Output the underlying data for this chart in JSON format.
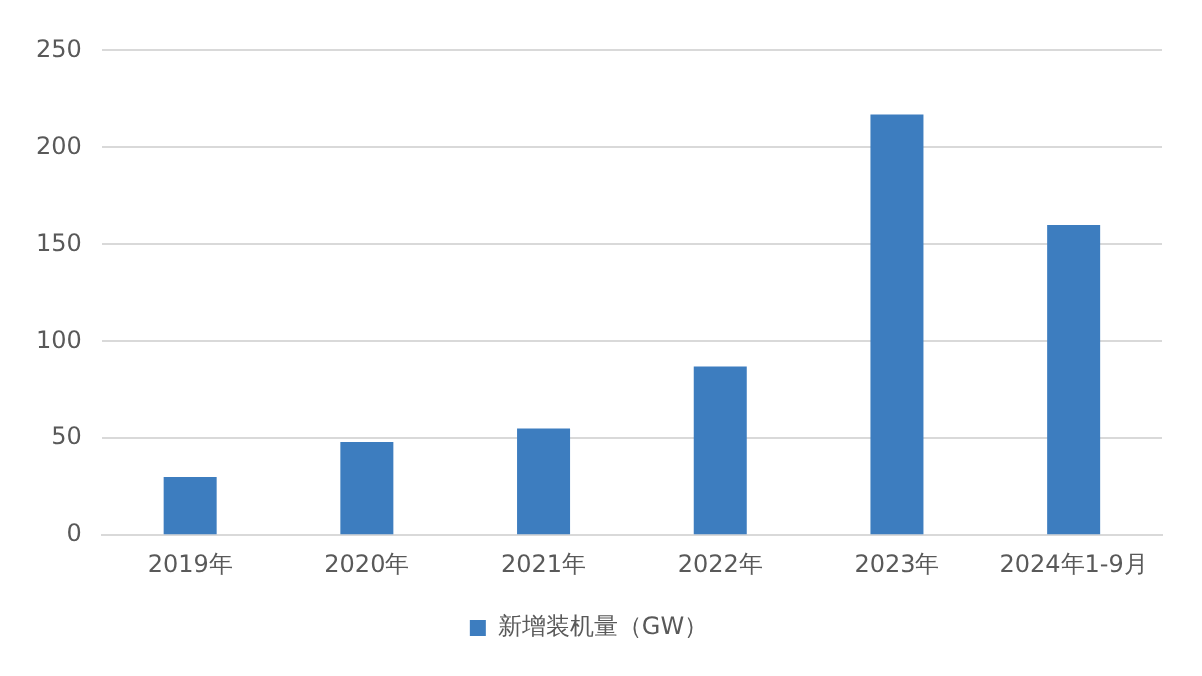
{
  "chart_data": {
    "type": "bar",
    "categories": [
      "2019年",
      "2020年",
      "2021年",
      "2022年",
      "2023年",
      "2024年1-9月"
    ],
    "series": [
      {
        "name": "新增装机量（GW）",
        "color": "#3d7dbf",
        "values": [
          30,
          48,
          55,
          87,
          217,
          160
        ]
      }
    ],
    "ylim": [
      0,
      250
    ],
    "yticks": [
      0,
      50,
      100,
      150,
      200,
      250
    ],
    "grid": "y",
    "legend": "bottom"
  }
}
